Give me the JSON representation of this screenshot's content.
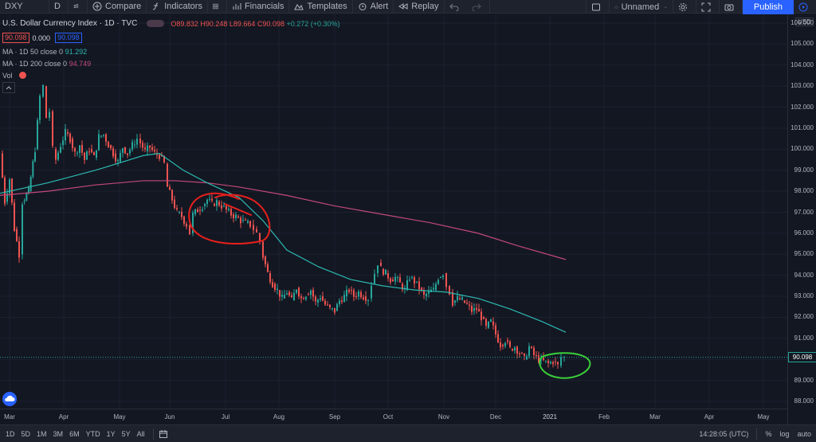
{
  "toolbar": {
    "symbol": "DXY",
    "interval": "D",
    "compare": "Compare",
    "indicators": "Indicators",
    "financials": "Financials",
    "templates": "Templates",
    "alert": "Alert",
    "replay": "Replay",
    "layout_name": "Unnamed",
    "publish": "Publish"
  },
  "legend": {
    "title": "U.S. Dollar Currency Index · 1D · TVC",
    "open": "O89.832",
    "high": "H90.248",
    "low": "L89.664",
    "close": "C90.098",
    "change": "+0.272 (+0.30%)",
    "bid": "90.098",
    "spread": "0.000",
    "ask": "90.098",
    "ma50_label": "MA · 1D 50 close 0",
    "ma50_value": "91.292",
    "ma200_label": "MA · 1D 200 close 0",
    "ma200_value": "94.749",
    "vol_label": "Vol"
  },
  "price_scale": {
    "currency": "USD",
    "labels": [
      "106.000",
      "105.000",
      "104.000",
      "103.000",
      "102.000",
      "101.000",
      "100.000",
      "99.000",
      "98.000",
      "97.000",
      "96.000",
      "95.000",
      "94.000",
      "93.000",
      "92.000",
      "91.000",
      "90.000",
      "89.000",
      "88.000"
    ],
    "last_price": "90.098"
  },
  "time_axis": {
    "labels": [
      "Mar",
      "Apr",
      "May",
      "Jun",
      "Jul",
      "Aug",
      "Sep",
      "Oct",
      "Nov",
      "Dec",
      "2021",
      "Feb",
      "Mar",
      "Apr",
      "May"
    ]
  },
  "bottom_bar": {
    "ranges": [
      "1D",
      "5D",
      "1M",
      "3M",
      "6M",
      "YTD",
      "1Y",
      "5Y",
      "All"
    ],
    "time": "14:28:05 (UTC)",
    "percent": "%",
    "log": "log",
    "auto": "auto"
  },
  "colors": {
    "up": "#26a69a",
    "down": "#ef5350",
    "ma50": "#2cb8b0",
    "ma200": "#c2497a",
    "annotation_red": "#e8201c",
    "annotation_green": "#3ad03a",
    "background": "#131722"
  },
  "chart_data": {
    "type": "candlestick",
    "y_range": [
      87.5,
      106.5
    ],
    "close_path": [
      [
        0,
        99.8
      ],
      [
        6,
        97.5
      ],
      [
        12,
        98.6
      ],
      [
        18,
        96.2
      ],
      [
        24,
        95.0
      ],
      [
        28,
        97.5
      ],
      [
        36,
        98.0
      ],
      [
        44,
        100.0
      ],
      [
        50,
        102.5
      ],
      [
        54,
        103.0
      ],
      [
        58,
        101.5
      ],
      [
        62,
        101.8
      ],
      [
        66,
        100.0
      ],
      [
        70,
        99.5
      ],
      [
        76,
        100.2
      ],
      [
        82,
        100.8
      ],
      [
        88,
        100.5
      ],
      [
        94,
        99.8
      ],
      [
        100,
        100.2
      ],
      [
        106,
        99.5
      ],
      [
        112,
        100.0
      ],
      [
        118,
        99.6
      ],
      [
        124,
        100.6
      ],
      [
        130,
        100.7
      ],
      [
        136,
        100.2
      ],
      [
        142,
        99.8
      ],
      [
        148,
        99.4
      ],
      [
        154,
        100.1
      ],
      [
        160,
        99.8
      ],
      [
        166,
        100.2
      ],
      [
        172,
        100.5
      ],
      [
        176,
        100.3
      ],
      [
        182,
        99.9
      ],
      [
        188,
        100.1
      ],
      [
        194,
        99.8
      ],
      [
        200,
        99.7
      ],
      [
        206,
        99.3
      ],
      [
        210,
        98.2
      ],
      [
        216,
        97.6
      ],
      [
        222,
        97.0
      ],
      [
        228,
        96.8
      ],
      [
        234,
        96.4
      ],
      [
        238,
        96.0
      ],
      [
        242,
        96.9
      ],
      [
        248,
        97.1
      ],
      [
        254,
        97.3
      ],
      [
        260,
        97.6
      ],
      [
        266,
        97.4
      ],
      [
        272,
        97.5
      ],
      [
        278,
        97.3
      ],
      [
        284,
        97.1
      ],
      [
        290,
        96.9
      ],
      [
        296,
        96.8
      ],
      [
        302,
        96.6
      ],
      [
        308,
        96.5
      ],
      [
        314,
        96.4
      ],
      [
        318,
        96.2
      ],
      [
        322,
        96.0
      ],
      [
        326,
        95.6
      ],
      [
        330,
        94.9
      ],
      [
        336,
        94.1
      ],
      [
        342,
        93.6
      ],
      [
        348,
        93.3
      ],
      [
        354,
        92.9
      ],
      [
        360,
        93.2
      ],
      [
        366,
        92.8
      ],
      [
        372,
        93.4
      ],
      [
        378,
        92.9
      ],
      [
        384,
        93.1
      ],
      [
        390,
        93.3
      ],
      [
        396,
        92.7
      ],
      [
        402,
        93.0
      ],
      [
        408,
        92.6
      ],
      [
        414,
        92.4
      ],
      [
        420,
        92.3
      ],
      [
        426,
        92.8
      ],
      [
        432,
        93.0
      ],
      [
        438,
        93.3
      ],
      [
        444,
        93.0
      ],
      [
        450,
        93.2
      ],
      [
        456,
        93.0
      ],
      [
        462,
        92.9
      ],
      [
        466,
        93.6
      ],
      [
        470,
        94.1
      ],
      [
        474,
        94.6
      ],
      [
        478,
        94.3
      ],
      [
        484,
        94.1
      ],
      [
        490,
        93.8
      ],
      [
        496,
        93.9
      ],
      [
        502,
        93.6
      ],
      [
        508,
        93.3
      ],
      [
        514,
        93.9
      ],
      [
        520,
        93.7
      ],
      [
        526,
        93.4
      ],
      [
        532,
        93.0
      ],
      [
        538,
        93.2
      ],
      [
        544,
        93.3
      ],
      [
        550,
        93.9
      ],
      [
        556,
        94.1
      ],
      [
        560,
        93.5
      ],
      [
        564,
        93.2
      ],
      [
        568,
        92.7
      ],
      [
        574,
        92.9
      ],
      [
        580,
        92.8
      ],
      [
        586,
        92.6
      ],
      [
        592,
        92.3
      ],
      [
        598,
        92.4
      ],
      [
        604,
        92.0
      ],
      [
        610,
        91.5
      ],
      [
        616,
        91.8
      ],
      [
        622,
        91.2
      ],
      [
        628,
        90.7
      ],
      [
        634,
        90.9
      ],
      [
        640,
        90.5
      ],
      [
        646,
        90.6
      ],
      [
        652,
        90.3
      ],
      [
        658,
        90.0
      ],
      [
        664,
        90.6
      ],
      [
        670,
        90.2
      ],
      [
        676,
        90.0
      ],
      [
        682,
        89.9
      ],
      [
        688,
        89.8
      ],
      [
        694,
        89.9
      ],
      [
        700,
        89.7
      ],
      [
        704,
        90.1
      ],
      [
        708,
        90.1
      ]
    ],
    "ma50_path": [
      [
        0,
        97.9
      ],
      [
        60,
        98.4
      ],
      [
        120,
        99.0
      ],
      [
        180,
        99.7
      ],
      [
        200,
        99.8
      ],
      [
        230,
        99.0
      ],
      [
        260,
        98.4
      ],
      [
        300,
        97.7
      ],
      [
        330,
        96.6
      ],
      [
        360,
        95.2
      ],
      [
        400,
        94.4
      ],
      [
        440,
        93.8
      ],
      [
        480,
        93.5
      ],
      [
        520,
        93.3
      ],
      [
        560,
        93.2
      ],
      [
        600,
        92.9
      ],
      [
        640,
        92.4
      ],
      [
        680,
        91.8
      ],
      [
        710,
        91.29
      ]
    ],
    "ma200_path": [
      [
        0,
        97.8
      ],
      [
        60,
        98.0
      ],
      [
        120,
        98.3
      ],
      [
        180,
        98.5
      ],
      [
        220,
        98.5
      ],
      [
        260,
        98.4
      ],
      [
        300,
        98.2
      ],
      [
        360,
        97.8
      ],
      [
        420,
        97.3
      ],
      [
        480,
        96.9
      ],
      [
        540,
        96.5
      ],
      [
        600,
        96.0
      ],
      [
        650,
        95.4
      ],
      [
        710,
        94.75
      ]
    ],
    "annotations": [
      {
        "shape": "circle",
        "color": "red",
        "label": ""
      },
      {
        "shape": "circle",
        "color": "green",
        "label": ""
      }
    ]
  }
}
